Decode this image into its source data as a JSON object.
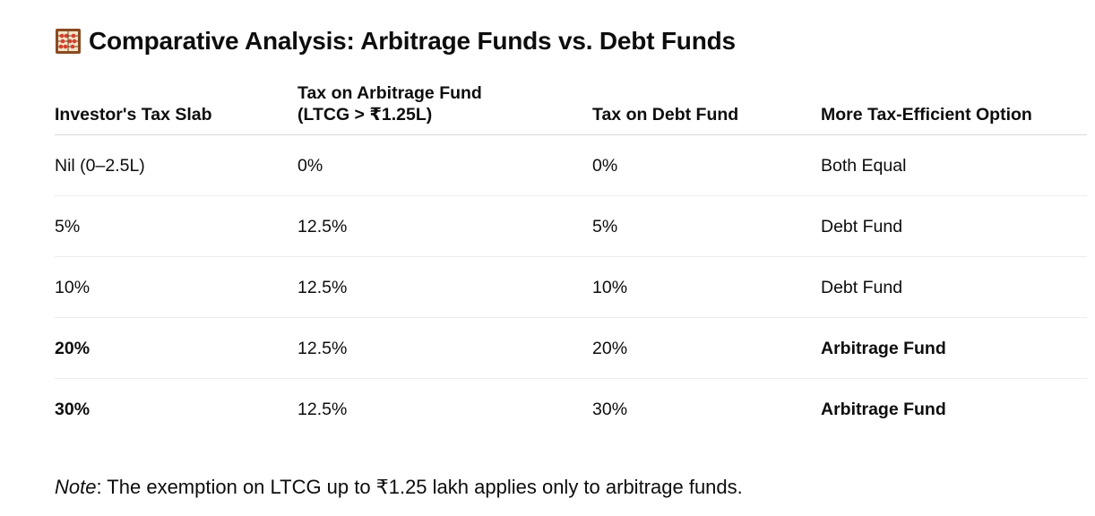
{
  "heading": {
    "icon": "abacus-icon",
    "text": "Comparative Analysis: Arbitrage Funds vs. Debt Funds"
  },
  "table": {
    "headers": [
      "Investor's Tax Slab",
      "Tax on Arbitrage Fund\n(LTCG > ₹1.25L)",
      "Tax on Debt Fund",
      "More Tax-Efficient Option"
    ],
    "header_line2": {
      "col2_line1": "Tax on Arbitrage Fund",
      "col2_line2": "(LTCG > ₹1.25L)"
    },
    "rows": [
      {
        "slab": "Nil (0–2.5L)",
        "arbitrage": "0%",
        "debt": "0%",
        "option": "Both Equal",
        "bold": false
      },
      {
        "slab": "5%",
        "arbitrage": "12.5%",
        "debt": "5%",
        "option": "Debt Fund",
        "bold": false
      },
      {
        "slab": "10%",
        "arbitrage": "12.5%",
        "debt": "10%",
        "option": "Debt Fund",
        "bold": false
      },
      {
        "slab": "20%",
        "arbitrage": "12.5%",
        "debt": "20%",
        "option": "Arbitrage Fund",
        "bold": true
      },
      {
        "slab": "30%",
        "arbitrage": "12.5%",
        "debt": "30%",
        "option": "Arbitrage Fund",
        "bold": true
      }
    ]
  },
  "note": {
    "label": "Note",
    "text": ": The exemption on LTCG up to ₹1.25 lakh applies only to arbitrage funds."
  }
}
